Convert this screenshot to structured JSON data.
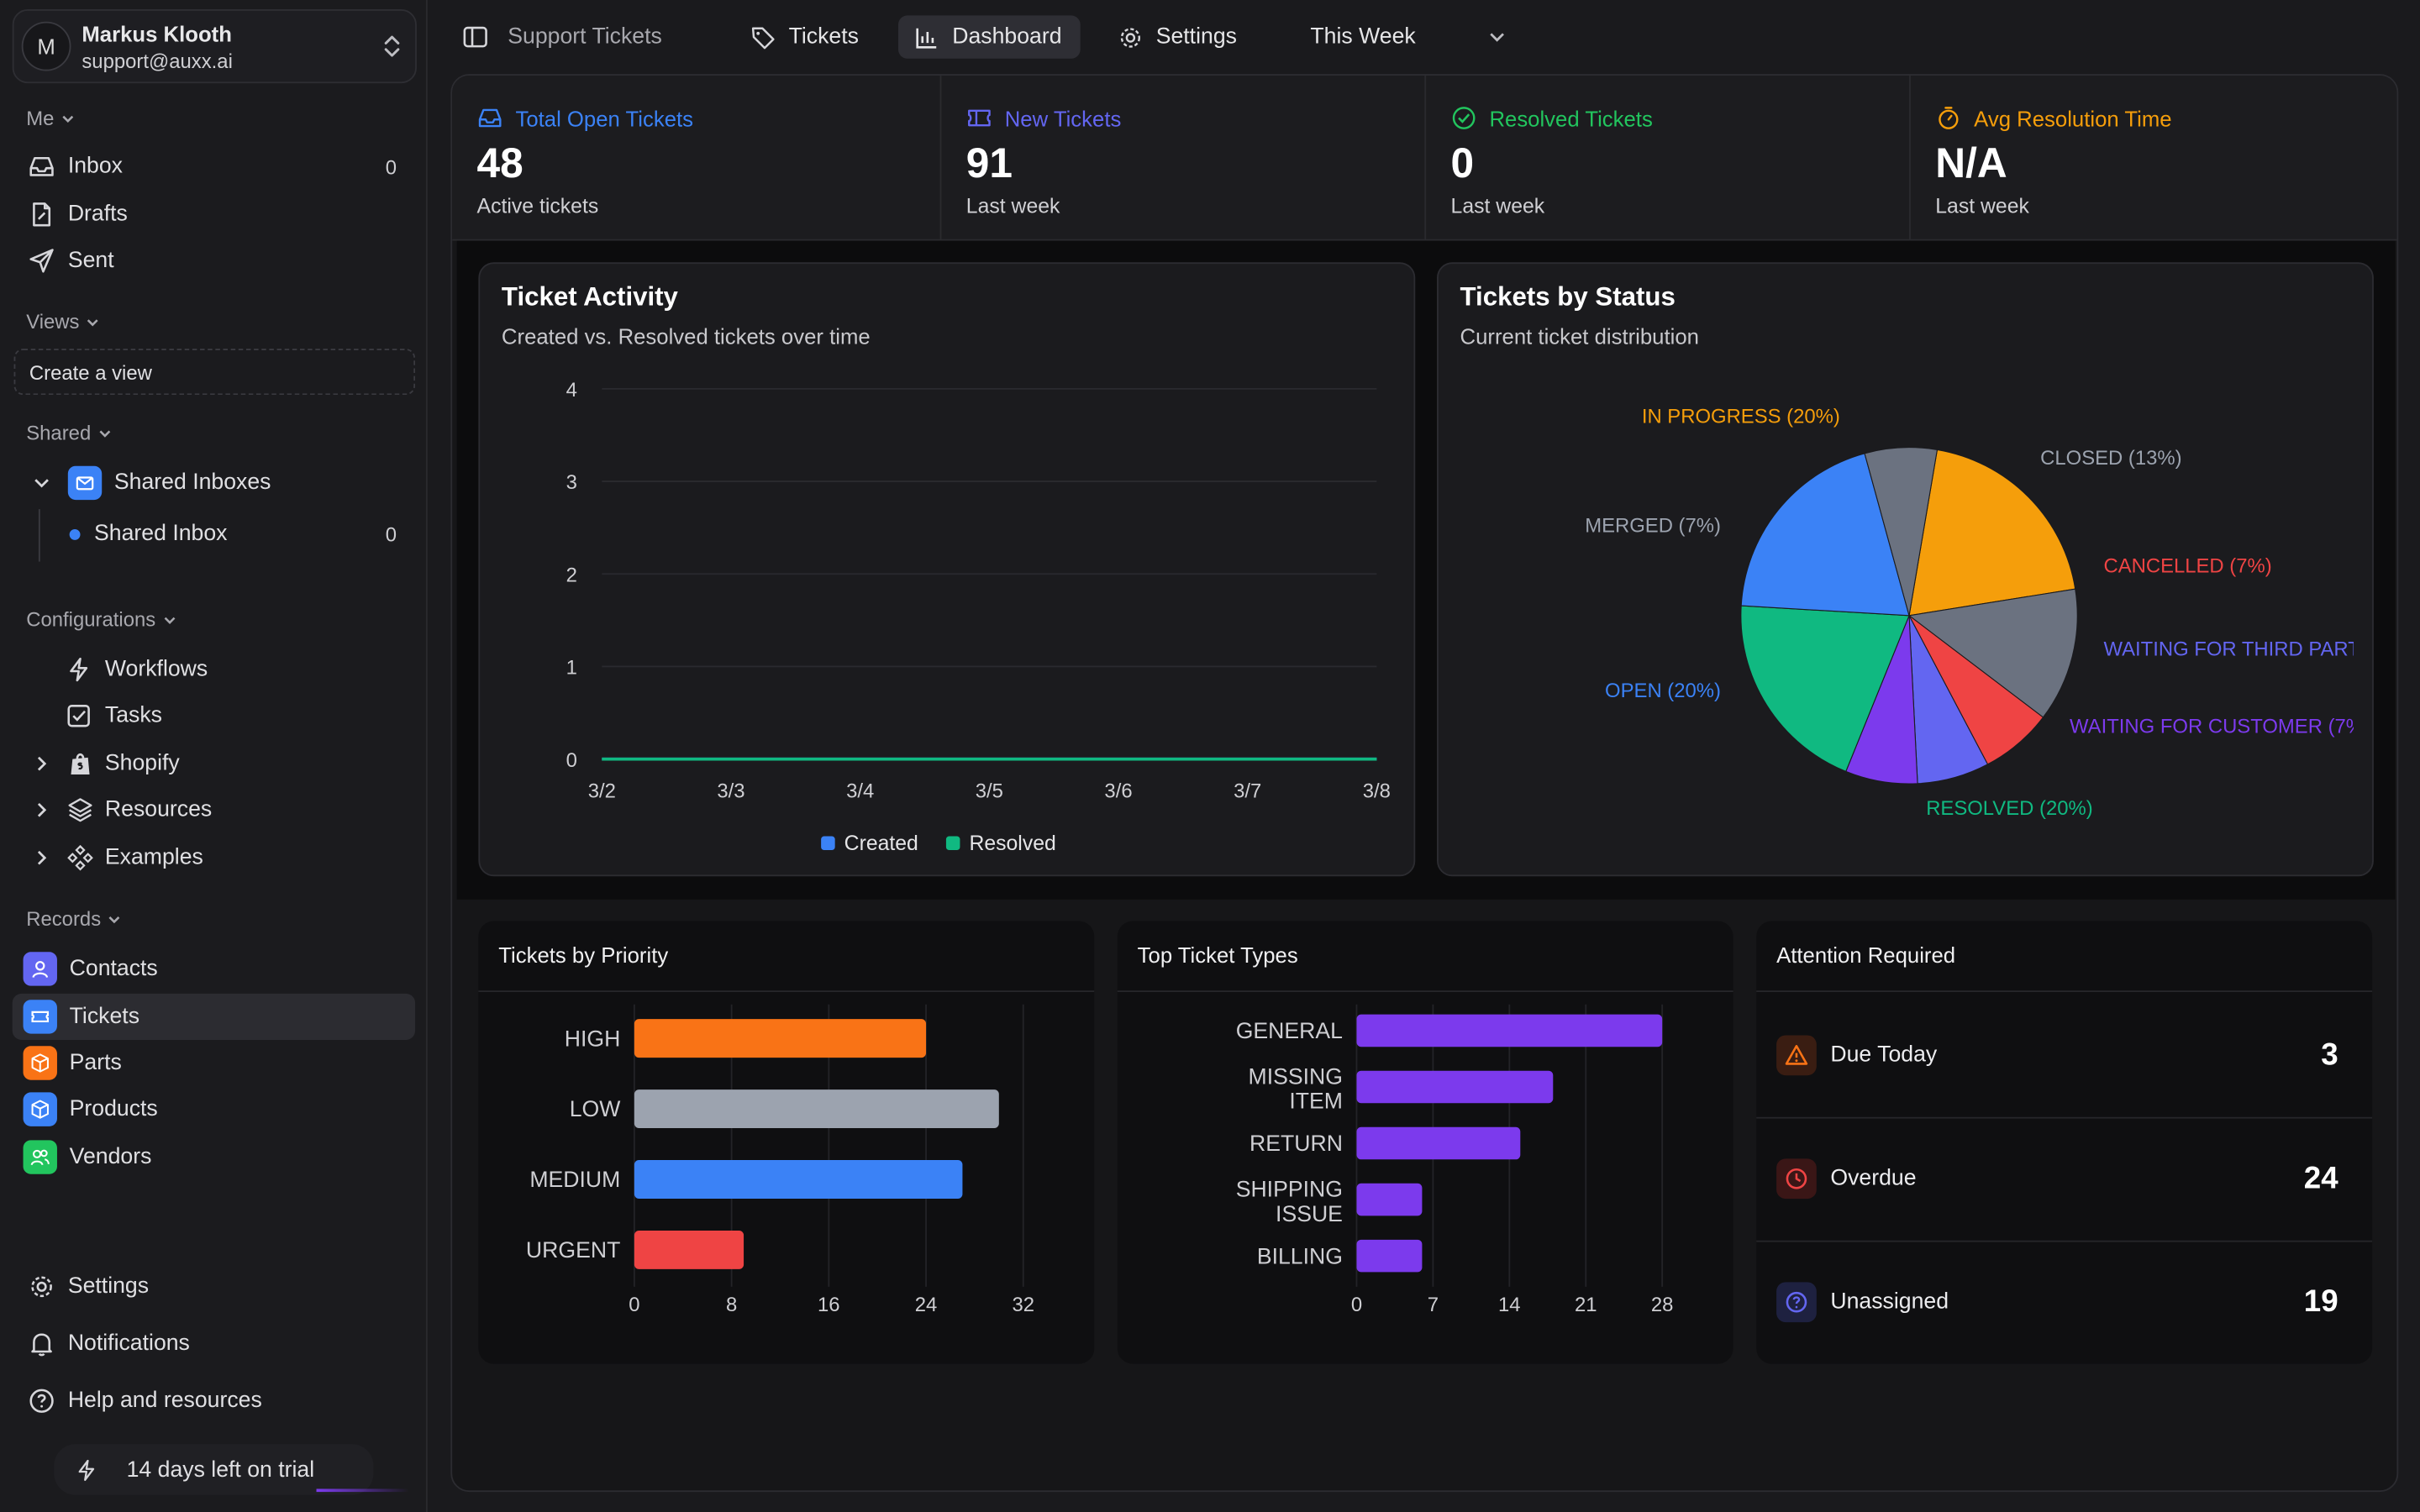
{
  "user": {
    "initial": "M",
    "name": "Markus Klooth",
    "email": "support@auxx.ai"
  },
  "sidebar": {
    "me_label": "Me",
    "me_items": [
      {
        "label": "Inbox",
        "count": "0",
        "icon": "inbox-icon"
      },
      {
        "label": "Drafts",
        "count": "",
        "icon": "drafts-icon"
      },
      {
        "label": "Sent",
        "count": "",
        "icon": "send-icon"
      }
    ],
    "views_label": "Views",
    "create_view": "Create a view",
    "shared_label": "Shared",
    "shared_inboxes": "Shared Inboxes",
    "shared_inbox": {
      "label": "Shared Inbox",
      "count": "0"
    },
    "config_label": "Configurations",
    "config_items": [
      "Workflows",
      "Tasks",
      "Shopify",
      "Resources",
      "Examples"
    ],
    "records_label": "Records",
    "records_items": [
      "Contacts",
      "Tickets",
      "Parts",
      "Products",
      "Vendors"
    ],
    "bottom_items": [
      "Settings",
      "Notifications",
      "Help and resources"
    ],
    "trial": "14 days left on trial"
  },
  "topbar": {
    "title": "Support Tickets",
    "tabs": [
      "Tickets",
      "Dashboard",
      "Settings"
    ],
    "range": "This Week"
  },
  "stats": [
    {
      "title": "Total Open Tickets",
      "value": "48",
      "sub": "Active tickets",
      "color": "#3b82f6"
    },
    {
      "title": "New Tickets",
      "value": "91",
      "sub": "Last week",
      "color": "#6366f1"
    },
    {
      "title": "Resolved Tickets",
      "value": "0",
      "sub": "Last week",
      "color": "#22c55e"
    },
    {
      "title": "Avg Resolution Time",
      "value": "N/A",
      "sub": "Last week",
      "color": "#f59e0b"
    }
  ],
  "activity": {
    "title": "Ticket Activity",
    "subtitle": "Created vs. Resolved tickets over time"
  },
  "status": {
    "title": "Tickets by Status",
    "subtitle": "Current ticket distribution"
  },
  "priority": {
    "title": "Tickets by Priority"
  },
  "types": {
    "title": "Top Ticket Types"
  },
  "attention": {
    "title": "Attention Required",
    "items": [
      {
        "label": "Due Today",
        "value": "3"
      },
      {
        "label": "Overdue",
        "value": "24"
      },
      {
        "label": "Unassigned",
        "value": "19"
      }
    ]
  },
  "chart_data": [
    {
      "type": "line",
      "title": "Ticket Activity",
      "x": [
        "3/2",
        "3/3",
        "3/4",
        "3/5",
        "3/6",
        "3/7",
        "3/8"
      ],
      "ylim": [
        0,
        4
      ],
      "yticks": [
        0,
        1,
        2,
        3,
        4
      ],
      "series": [
        {
          "name": "Created",
          "values": [
            0,
            0,
            0,
            0,
            0,
            0,
            0
          ],
          "color": "#3b82f6"
        },
        {
          "name": "Resolved",
          "values": [
            0,
            0,
            0,
            0,
            0,
            0,
            0
          ],
          "color": "#10b981"
        }
      ],
      "grid": true,
      "legend": "bottom"
    },
    {
      "type": "pie",
      "title": "Tickets by Status",
      "slices": [
        {
          "label": "IN PROGRESS (20%)",
          "value": 20,
          "color": "#f59e0b"
        },
        {
          "label": "CLOSED (13%)",
          "value": 13,
          "color": "#6b7280"
        },
        {
          "label": "CANCELLED (7%)",
          "value": 7,
          "color": "#ef4444"
        },
        {
          "label": "WAITING FOR THIRD PART",
          "value": 7,
          "color": "#6366f1"
        },
        {
          "label": "WAITING FOR CUSTOMER (7%",
          "value": 7,
          "color": "#7c3aed"
        },
        {
          "label": "RESOLVED (20%)",
          "value": 20,
          "color": "#10b981"
        },
        {
          "label": "OPEN (20%)",
          "value": 20,
          "color": "#3b82f6"
        },
        {
          "label": "MERGED (7%)",
          "value": 7,
          "color": "#6b7280"
        }
      ]
    },
    {
      "type": "bar",
      "orientation": "horizontal",
      "title": "Tickets by Priority",
      "categories": [
        "HIGH",
        "LOW",
        "MEDIUM",
        "URGENT"
      ],
      "values": [
        24,
        30,
        27,
        9
      ],
      "colors": [
        "#f97316",
        "#9ca3af",
        "#3b82f6",
        "#ef4444"
      ],
      "xticks": [
        0,
        8,
        16,
        24,
        32
      ],
      "xlim": [
        0,
        32
      ]
    },
    {
      "type": "bar",
      "orientation": "horizontal",
      "title": "Top Ticket Types",
      "categories": [
        "GENERAL",
        "MISSING ITEM",
        "RETURN",
        "SHIPPING ISSUE",
        "BILLING"
      ],
      "values": [
        28,
        18,
        15,
        6,
        6
      ],
      "color": "#7c3aed",
      "xticks": [
        0,
        7,
        14,
        21,
        28
      ],
      "xlim": [
        0,
        28
      ]
    }
  ]
}
